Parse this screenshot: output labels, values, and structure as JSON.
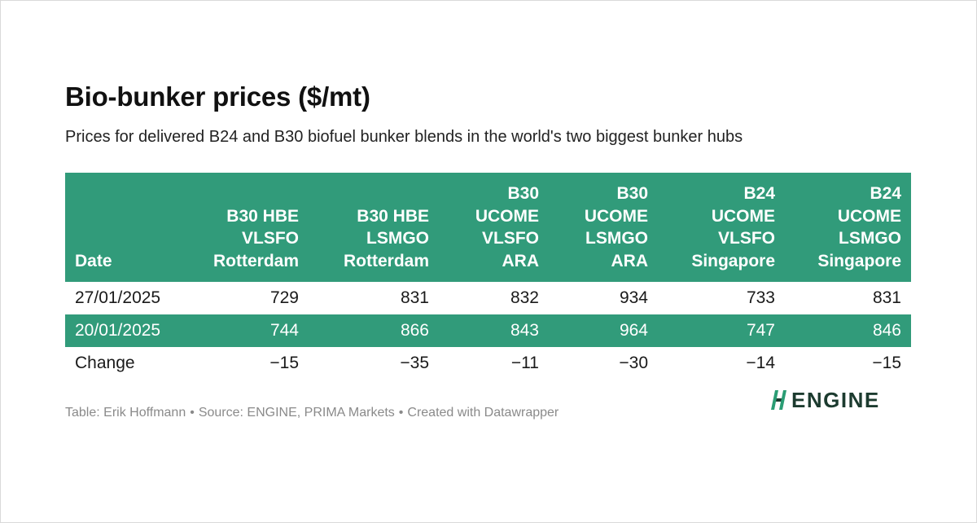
{
  "title": "Bio-bunker prices ($/mt)",
  "subtitle": "Prices for delivered B24 and B30 biofuel bunker blends in the world's two biggest bunker hubs",
  "colors": {
    "accent": "#319b7a",
    "header_text": "#ffffff",
    "logo": "#1c3b2f",
    "logo_mark": "#2a9d74"
  },
  "chart_data": {
    "type": "table",
    "columns": [
      {
        "lines": [
          "Date"
        ]
      },
      {
        "lines": [
          "B30 HBE",
          "VLSFO",
          "Rotterdam"
        ]
      },
      {
        "lines": [
          "B30 HBE",
          "LSMGO",
          "Rotterdam"
        ]
      },
      {
        "lines": [
          "B30",
          "UCOME",
          "VLSFO",
          "ARA"
        ]
      },
      {
        "lines": [
          "B30",
          "UCOME",
          "LSMGO",
          "ARA"
        ]
      },
      {
        "lines": [
          "B24",
          "UCOME",
          "VLSFO",
          "Singapore"
        ]
      },
      {
        "lines": [
          "B24",
          "UCOME",
          "LSMGO",
          "Singapore"
        ]
      }
    ],
    "rows": [
      {
        "label": "27/01/2025",
        "values": [
          "729",
          "831",
          "832",
          "934",
          "733",
          "831"
        ],
        "highlight": false
      },
      {
        "label": "20/01/2025",
        "values": [
          "744",
          "866",
          "843",
          "964",
          "747",
          "846"
        ],
        "highlight": true
      },
      {
        "label": "Change",
        "values": [
          "−15",
          "−35",
          "−11",
          "−30",
          "−14",
          "−15"
        ],
        "highlight": false
      }
    ]
  },
  "footer": {
    "table_credit": "Table: Erik Hoffmann",
    "source": "Source: ENGINE, PRIMA Markets",
    "created_with": "Created with Datawrapper",
    "separator": "•"
  },
  "logo": {
    "text": "ENGINE",
    "icon": "engine-logo-mark-icon"
  }
}
